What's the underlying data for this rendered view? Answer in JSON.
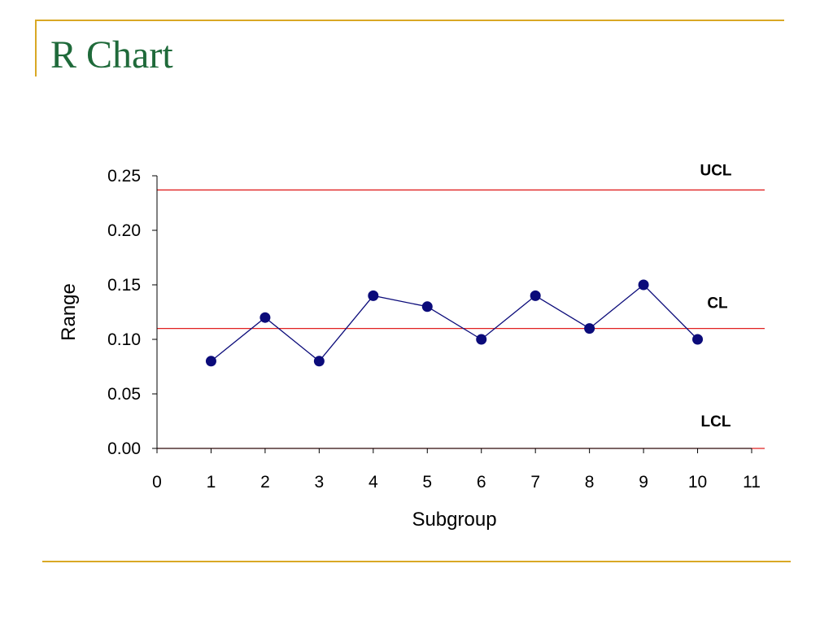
{
  "slide": {
    "title": "R Chart"
  },
  "colors": {
    "accent": "#d9a825",
    "title": "#1f6a3a",
    "data": "#0b0b7a",
    "limit": "#e02020"
  },
  "chart_data": {
    "type": "line",
    "title": "",
    "xlabel": "Subgroup",
    "ylabel": "Range",
    "xlim": [
      0,
      11
    ],
    "ylim": [
      0,
      0.25
    ],
    "x_ticks": [
      "0",
      "1",
      "2",
      "3",
      "4",
      "5",
      "6",
      "7",
      "8",
      "9",
      "10",
      "11"
    ],
    "y_ticks": [
      "0.00",
      "0.05",
      "0.10",
      "0.15",
      "0.20",
      "0.25"
    ],
    "grid": false,
    "series": [
      {
        "x": [
          1,
          2,
          3,
          4,
          5,
          6,
          7,
          8,
          9,
          10
        ],
        "values": [
          0.08,
          0.12,
          0.08,
          0.14,
          0.13,
          0.1,
          0.14,
          0.11,
          0.15,
          0.1
        ]
      }
    ],
    "control_limits": [
      {
        "label": "UCL",
        "value": 0.237
      },
      {
        "label": "CL",
        "value": 0.11
      },
      {
        "label": "LCL",
        "value": 0.0
      }
    ]
  }
}
